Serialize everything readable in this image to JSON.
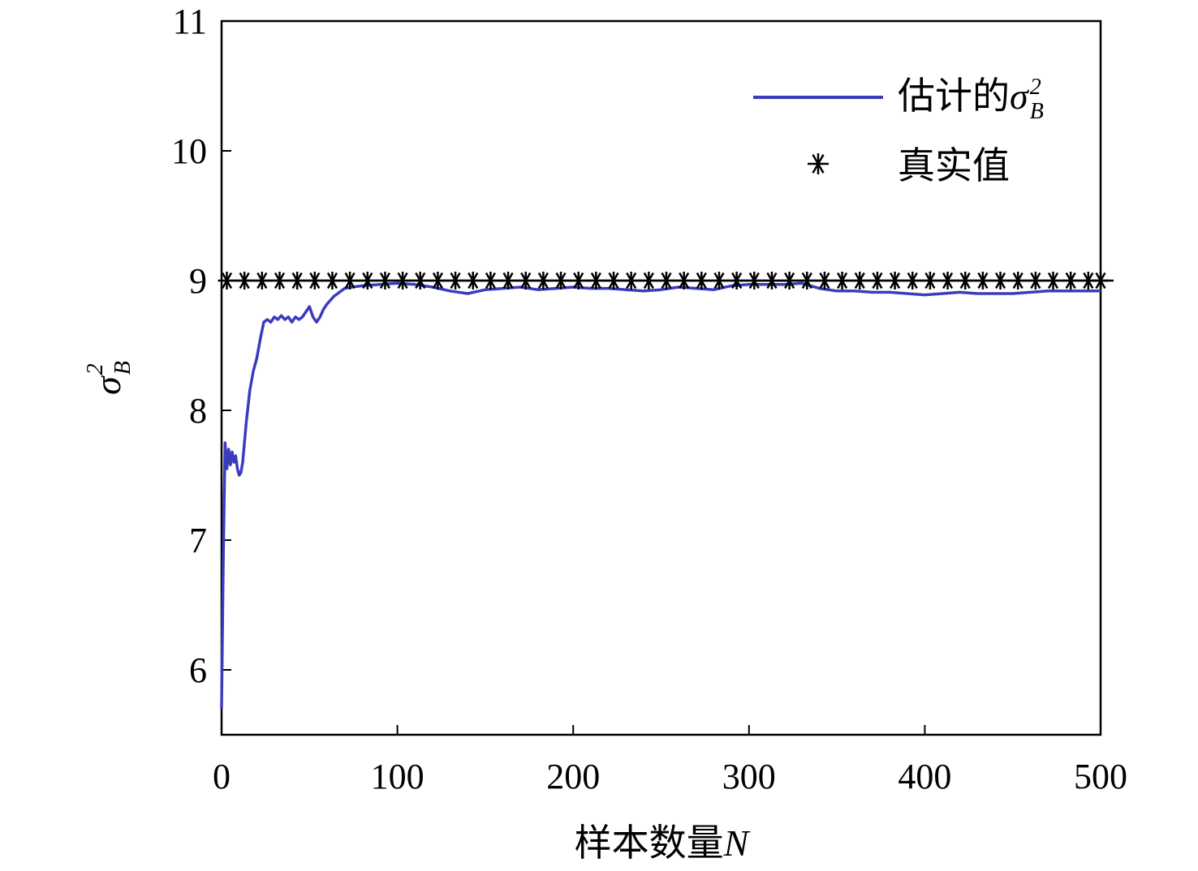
{
  "chart_data": {
    "type": "line",
    "xlabel": {
      "text": "样本数量",
      "math": "N"
    },
    "ylabel": {
      "symbol": "σ",
      "sub": "B",
      "sup": "2"
    },
    "xlim": [
      0,
      500
    ],
    "ylim": [
      5.5,
      11
    ],
    "xticks": [
      0,
      100,
      200,
      300,
      400,
      500
    ],
    "yticks": [
      6,
      7,
      8,
      9,
      10,
      11
    ],
    "xtick_labels": [
      "0",
      "100",
      "200",
      "300",
      "400",
      "500"
    ],
    "ytick_labels": [
      "6",
      "7",
      "8",
      "9",
      "10",
      "11"
    ],
    "grid": false,
    "legend_position": "top-right",
    "series": [
      {
        "name": "估计的σ²B",
        "legend": {
          "text": "估计的",
          "symbol": "σ",
          "sub": "B",
          "sup": "2"
        },
        "style": "line",
        "color": "#3b3bbf",
        "x": [
          0,
          1,
          2,
          3,
          4,
          5,
          6,
          7,
          8,
          9,
          10,
          11,
          12,
          14,
          16,
          18,
          20,
          22,
          24,
          26,
          28,
          30,
          32,
          34,
          36,
          38,
          40,
          42,
          44,
          46,
          48,
          50,
          52,
          54,
          56,
          58,
          60,
          62,
          64,
          66,
          68,
          70,
          74,
          80,
          90,
          100,
          110,
          120,
          130,
          140,
          150,
          160,
          170,
          180,
          190,
          200,
          210,
          220,
          230,
          240,
          250,
          260,
          270,
          280,
          290,
          300,
          310,
          320,
          330,
          340,
          350,
          360,
          370,
          380,
          390,
          400,
          410,
          420,
          430,
          440,
          450,
          460,
          470,
          480,
          490,
          500
        ],
        "y": [
          5.7,
          6.9,
          7.75,
          7.55,
          7.7,
          7.58,
          7.68,
          7.6,
          7.65,
          7.55,
          7.5,
          7.52,
          7.6,
          7.9,
          8.15,
          8.3,
          8.4,
          8.55,
          8.68,
          8.7,
          8.68,
          8.72,
          8.7,
          8.73,
          8.7,
          8.72,
          8.68,
          8.72,
          8.7,
          8.72,
          8.76,
          8.8,
          8.72,
          8.68,
          8.72,
          8.78,
          8.82,
          8.85,
          8.88,
          8.9,
          8.92,
          8.94,
          8.95,
          8.96,
          8.97,
          8.98,
          8.97,
          8.95,
          8.92,
          8.9,
          8.93,
          8.94,
          8.95,
          8.93,
          8.94,
          8.95,
          8.94,
          8.94,
          8.93,
          8.92,
          8.93,
          8.95,
          8.94,
          8.93,
          8.96,
          8.97,
          8.97,
          8.97,
          8.98,
          8.94,
          8.92,
          8.92,
          8.91,
          8.91,
          8.9,
          8.89,
          8.9,
          8.91,
          8.9,
          8.9,
          8.9,
          8.91,
          8.92,
          8.92,
          8.92,
          8.92
        ]
      },
      {
        "name": "真实值",
        "legend": {
          "text": "真实值"
        },
        "style": "markers",
        "marker": "asterisk",
        "color": "#000000",
        "x": [
          3,
          13,
          23,
          33,
          43,
          53,
          63,
          73,
          83,
          93,
          103,
          113,
          123,
          133,
          143,
          153,
          163,
          173,
          183,
          193,
          203,
          213,
          223,
          233,
          243,
          253,
          263,
          273,
          283,
          293,
          303,
          313,
          323,
          333,
          343,
          353,
          363,
          373,
          383,
          393,
          403,
          413,
          423,
          433,
          443,
          453,
          463,
          473,
          483,
          493,
          500
        ],
        "y": [
          9,
          9,
          9,
          9,
          9,
          9,
          9,
          9,
          9,
          9,
          9,
          9,
          9,
          9,
          9,
          9,
          9,
          9,
          9,
          9,
          9,
          9,
          9,
          9,
          9,
          9,
          9,
          9,
          9,
          9,
          9,
          9,
          9,
          9,
          9,
          9,
          9,
          9,
          9,
          9,
          9,
          9,
          9,
          9,
          9,
          9,
          9,
          9,
          9,
          9,
          9
        ]
      }
    ]
  }
}
